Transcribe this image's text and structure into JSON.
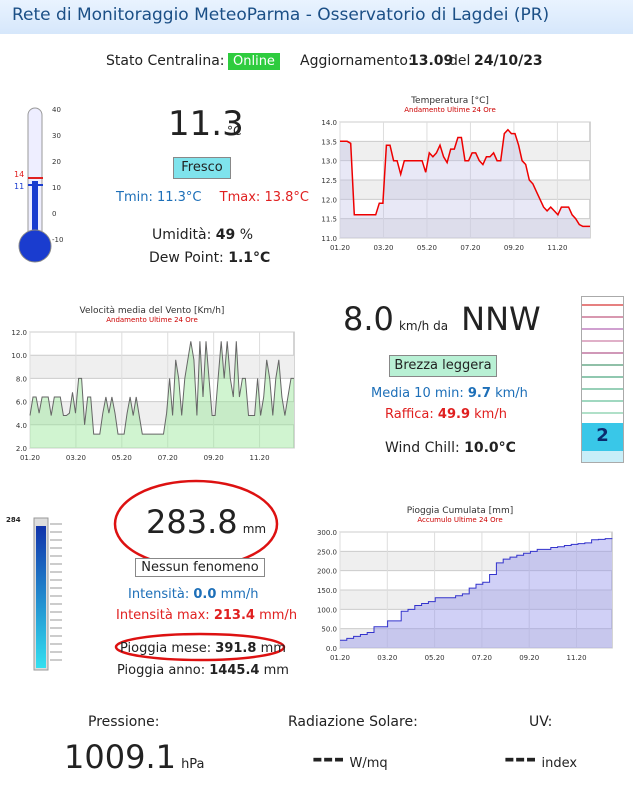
{
  "header": {
    "title": "Rete di Monitoraggio MeteoParma - Osservatorio di Lagdei (PR)"
  },
  "status": {
    "station_label": "Stato Centralina:",
    "station_value": "Online",
    "update_label": "Aggiornamento:",
    "update_time": "13.09",
    "update_del": "del",
    "update_date": "24/10/23"
  },
  "temperature": {
    "value": "11.3",
    "unit": "°C",
    "condition": "Fresco",
    "tmin_label": "Tmin:",
    "tmin_value": "11.3°C",
    "tmax_label": "Tmax:",
    "tmax_value": "13.8°C",
    "humidity_label": "Umidità:",
    "humidity_value": "49",
    "humidity_unit": "%",
    "dewpoint_label": "Dew Point:",
    "dewpoint_value": "1.1°C",
    "thermo_scale": [
      "40",
      "30",
      "20",
      "10",
      "0",
      "-10"
    ],
    "thermo_max_marker": "14",
    "thermo_min_marker": "11",
    "thermo_level": 11.3
  },
  "wind": {
    "speed": "8.0",
    "unit_from": "km/h da",
    "direction": "NNW",
    "condition": "Brezza leggera",
    "avg_label": "Media 10 min:",
    "avg_value": "9.7",
    "avg_unit": "km/h",
    "gust_label": "Raffica:",
    "gust_value": "49.9",
    "gust_unit": "km/h",
    "chill_label": "Wind Chill:",
    "chill_value": "10.0°C",
    "beaufort": "2"
  },
  "rain": {
    "value": "283.8",
    "unit": "mm",
    "condition": "Nessun fenomeno",
    "int_label": "Intensità:",
    "int_value": "0.0",
    "int_unit": "mm/h",
    "intmax_label": "Intensità max:",
    "intmax_value": "213.4",
    "intmax_unit": "mm/h",
    "month_label": "Pioggia mese:",
    "month_value": "391.8",
    "month_unit": "mm",
    "year_label": "Pioggia anno:",
    "year_value": "1445.4",
    "year_unit": "mm",
    "gauge_top": "284"
  },
  "bottom": {
    "pressure_label": "Pressione:",
    "pressure_value": "1009.1",
    "pressure_unit": "hPa",
    "solar_label": "Radiazione Solare:",
    "solar_value": "---",
    "solar_unit": "W/mq",
    "uv_label": "UV:",
    "uv_value": "---",
    "uv_unit": "index"
  },
  "colors": {
    "title_blue": "#1b4f86",
    "tmin_blue": "#1d6fb8",
    "tmax_red": "#e02020",
    "online_green": "#2ecc3e",
    "condition_cyan": "#7fe3ec",
    "rain_circle_red": "#dd1111"
  },
  "chart_data": [
    {
      "type": "line",
      "title": "Temperatura [°C]",
      "subtitle": "Andamento Ultime 24 Ore",
      "x_ticks": [
        "01.20",
        "03.20",
        "05.20",
        "07.20",
        "09.20",
        "11.20"
      ],
      "y_ticks": [
        "14.0",
        "13.5",
        "13.0",
        "12.5",
        "12.0",
        "11.5",
        "11.0"
      ],
      "ylim": [
        11.0,
        14.0
      ],
      "grid": true,
      "series": [
        {
          "values": [
            13.5,
            13.5,
            13.5,
            13.45,
            11.6,
            11.6,
            11.6,
            11.6,
            11.6,
            11.6,
            11.6,
            11.9,
            11.9,
            13.4,
            13.4,
            13.0,
            13.0,
            12.65,
            13.0,
            13.0,
            13.0,
            13.0,
            13.0,
            13.0,
            12.7,
            13.2,
            13.1,
            13.2,
            13.4,
            13.1,
            12.95,
            13.3,
            13.3,
            13.6,
            13.6,
            13.0,
            13.0,
            13.2,
            13.2,
            13.0,
            12.9,
            13.1,
            13.1,
            13.2,
            13.0,
            13.0,
            13.7,
            13.8,
            13.7,
            13.7,
            13.4,
            13.0,
            12.9,
            12.5,
            12.4,
            12.2,
            12.0,
            11.8,
            11.7,
            11.8,
            11.7,
            11.6,
            11.8,
            11.8,
            11.8,
            11.6,
            11.5,
            11.35,
            11.3,
            11.3,
            11.3
          ]
        }
      ]
    },
    {
      "type": "area",
      "title": "Velocità media del Vento [Km/h]",
      "subtitle": "Andamento Ultime 24 Ore",
      "x_ticks": [
        "01.20",
        "03.20",
        "05.20",
        "07.20",
        "09.20",
        "11.20"
      ],
      "y_ticks": [
        "12.0",
        "10.0",
        "8.0",
        "6.0",
        "4.0",
        "2.0"
      ],
      "ylim": [
        2.0,
        12.0
      ],
      "grid": true,
      "series": [
        {
          "values": [
            4.8,
            6.4,
            6.4,
            5.0,
            6.4,
            6.4,
            6.4,
            4.8,
            6.4,
            6.4,
            6.4,
            4.8,
            4.8,
            5.0,
            6.8,
            5.0,
            8.0,
            8.0,
            4.0,
            6.4,
            6.4,
            3.2,
            3.2,
            3.2,
            5.0,
            6.4,
            5.0,
            6.4,
            5.0,
            3.2,
            3.2,
            3.2,
            5.0,
            6.4,
            4.8,
            6.4,
            4.8,
            3.2,
            3.2,
            3.2,
            3.2,
            3.2,
            3.2,
            3.2,
            3.2,
            5.0,
            8.0,
            4.8,
            9.6,
            8.0,
            4.8,
            8.0,
            9.6,
            11.2,
            9.6,
            4.8,
            11.2,
            6.4,
            11.2,
            8.0,
            4.8,
            4.8,
            8.0,
            11.2,
            8.0,
            11.2,
            8.0,
            6.4,
            11.2,
            6.4,
            8.0,
            8.0,
            4.8,
            4.8,
            4.8,
            8.0,
            4.8,
            6.4,
            9.6,
            8.0,
            4.8,
            8.0,
            9.6,
            6.4,
            4.8,
            6.4,
            8.0,
            8.0
          ]
        }
      ]
    },
    {
      "type": "area",
      "title": "Pioggia Cumulata [mm]",
      "subtitle": "Accumulo Ultime 24 Ore",
      "x_ticks": [
        "01.20",
        "03.20",
        "05.20",
        "07.20",
        "09.20",
        "11.20"
      ],
      "y_ticks": [
        "300.0",
        "250.0",
        "200.0",
        "150.0",
        "100.0",
        "50.0",
        "0.0"
      ],
      "ylim": [
        0,
        300
      ],
      "grid": true,
      "series": [
        {
          "values": [
            20,
            25,
            30,
            35,
            40,
            55,
            55,
            70,
            70,
            95,
            100,
            110,
            115,
            120,
            130,
            130,
            130,
            135,
            140,
            155,
            165,
            170,
            190,
            220,
            230,
            235,
            240,
            245,
            250,
            255,
            255,
            260,
            262,
            265,
            268,
            270,
            272,
            280,
            281,
            283,
            283.8
          ]
        }
      ]
    }
  ]
}
